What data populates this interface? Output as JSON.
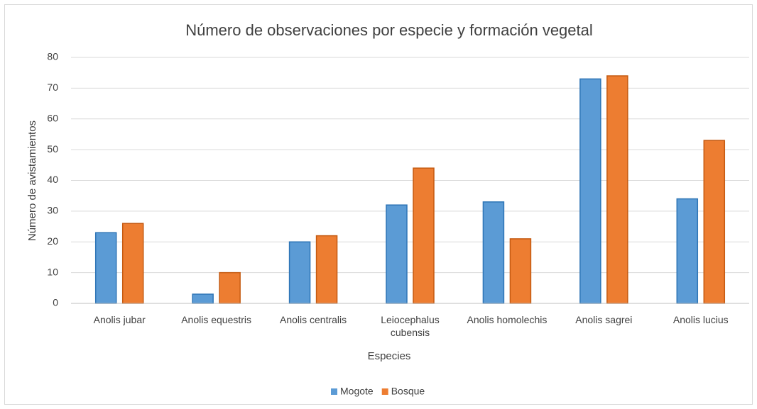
{
  "chart_data": {
    "type": "bar",
    "title": "Número de observaciones por especie y formación vegetal",
    "x_label": "Especies",
    "y_label": "Número de avistamientos",
    "categories": [
      "Anolis jubar",
      "Anolis equestris",
      "Anolis centralis",
      "Leiocephalus cubensis",
      "Anolis homolechis",
      "Anolis sagrei",
      "Anolis lucius"
    ],
    "series": [
      {
        "name": "Mogote",
        "color": "#5b9bd5",
        "values": [
          23,
          3,
          20,
          32,
          33,
          73,
          34
        ]
      },
      {
        "name": "Bosque",
        "color": "#ed7d31",
        "values": [
          26,
          10,
          22,
          44,
          21,
          74,
          53
        ]
      }
    ],
    "ylim": [
      0,
      80
    ],
    "yticks": [
      0,
      10,
      20,
      30,
      40,
      50,
      60,
      70,
      80
    ],
    "grid": true,
    "legend": "bottom"
  }
}
